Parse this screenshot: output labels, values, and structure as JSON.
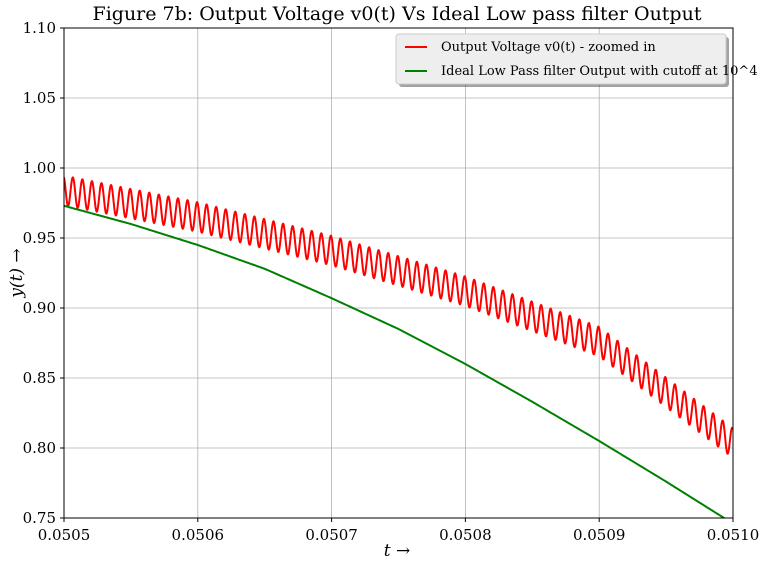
{
  "chart_data": {
    "type": "line",
    "title": "Figure 7b: Output Voltage v0(t) Vs Ideal Low pass filter Output",
    "xlabel": "t →",
    "ylabel": "y(t) →",
    "xlim": [
      0.0505,
      0.051
    ],
    "ylim": [
      0.75,
      1.1
    ],
    "x_ticks": [
      "0.0505",
      "0.0506",
      "0.0507",
      "0.0508",
      "0.0509",
      "0.0510"
    ],
    "y_ticks": [
      "0.75",
      "0.80",
      "0.85",
      "0.90",
      "0.95",
      "1.00",
      "1.05",
      "1.10"
    ],
    "grid": true,
    "legend_position": "top-right",
    "series": [
      {
        "name": "Output Voltage v0(t) - zoomed in",
        "color": "#ff0000",
        "description_trend": {
          "x": [
            0.0505,
            0.0506,
            0.0507,
            0.0508,
            0.0509,
            0.051
          ],
          "y": [
            0.984,
            0.965,
            0.941,
            0.912,
            0.876,
            0.8035
          ]
        },
        "ripple_amplitude": 0.0105,
        "ripple_cycles": 70
      },
      {
        "name": "Ideal Low Pass filter Output with cutoff at 10^4",
        "color": "#008000",
        "x": [
          0.0505,
          0.05055,
          0.0506,
          0.05065,
          0.0507,
          0.05075,
          0.0508,
          0.05085,
          0.0509,
          0.05095,
          0.051
        ],
        "y": [
          0.973,
          0.96,
          0.945,
          0.928,
          0.907,
          0.885,
          0.86,
          0.833,
          0.805,
          0.776,
          0.746
        ]
      }
    ]
  }
}
